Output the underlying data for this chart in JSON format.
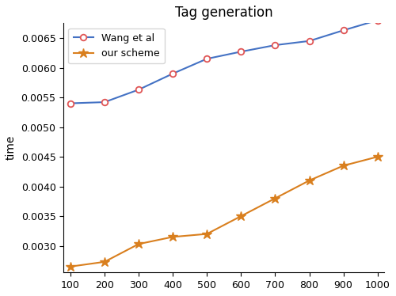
{
  "x": [
    100,
    200,
    300,
    400,
    500,
    600,
    700,
    800,
    900,
    1000
  ],
  "wang_et_al": [
    0.0054,
    0.00542,
    0.00563,
    0.0059,
    0.00615,
    0.00627,
    0.00638,
    0.00645,
    0.00663,
    0.0068
  ],
  "our_scheme": [
    0.00265,
    0.00273,
    0.00303,
    0.00315,
    0.0032,
    0.0035,
    0.0038,
    0.0041,
    0.00435,
    0.0045
  ],
  "wang_color": "#4472c4",
  "our_color": "#d97f1e",
  "title": "Tag generation",
  "ylabel": "time",
  "xlabel": "",
  "legend_wang": "Wang et al",
  "legend_our": "our scheme",
  "ylim": [
    0.00255,
    0.00675
  ],
  "yticks": [
    0.003,
    0.0035,
    0.004,
    0.0045,
    0.005,
    0.0055,
    0.006,
    0.0065
  ]
}
